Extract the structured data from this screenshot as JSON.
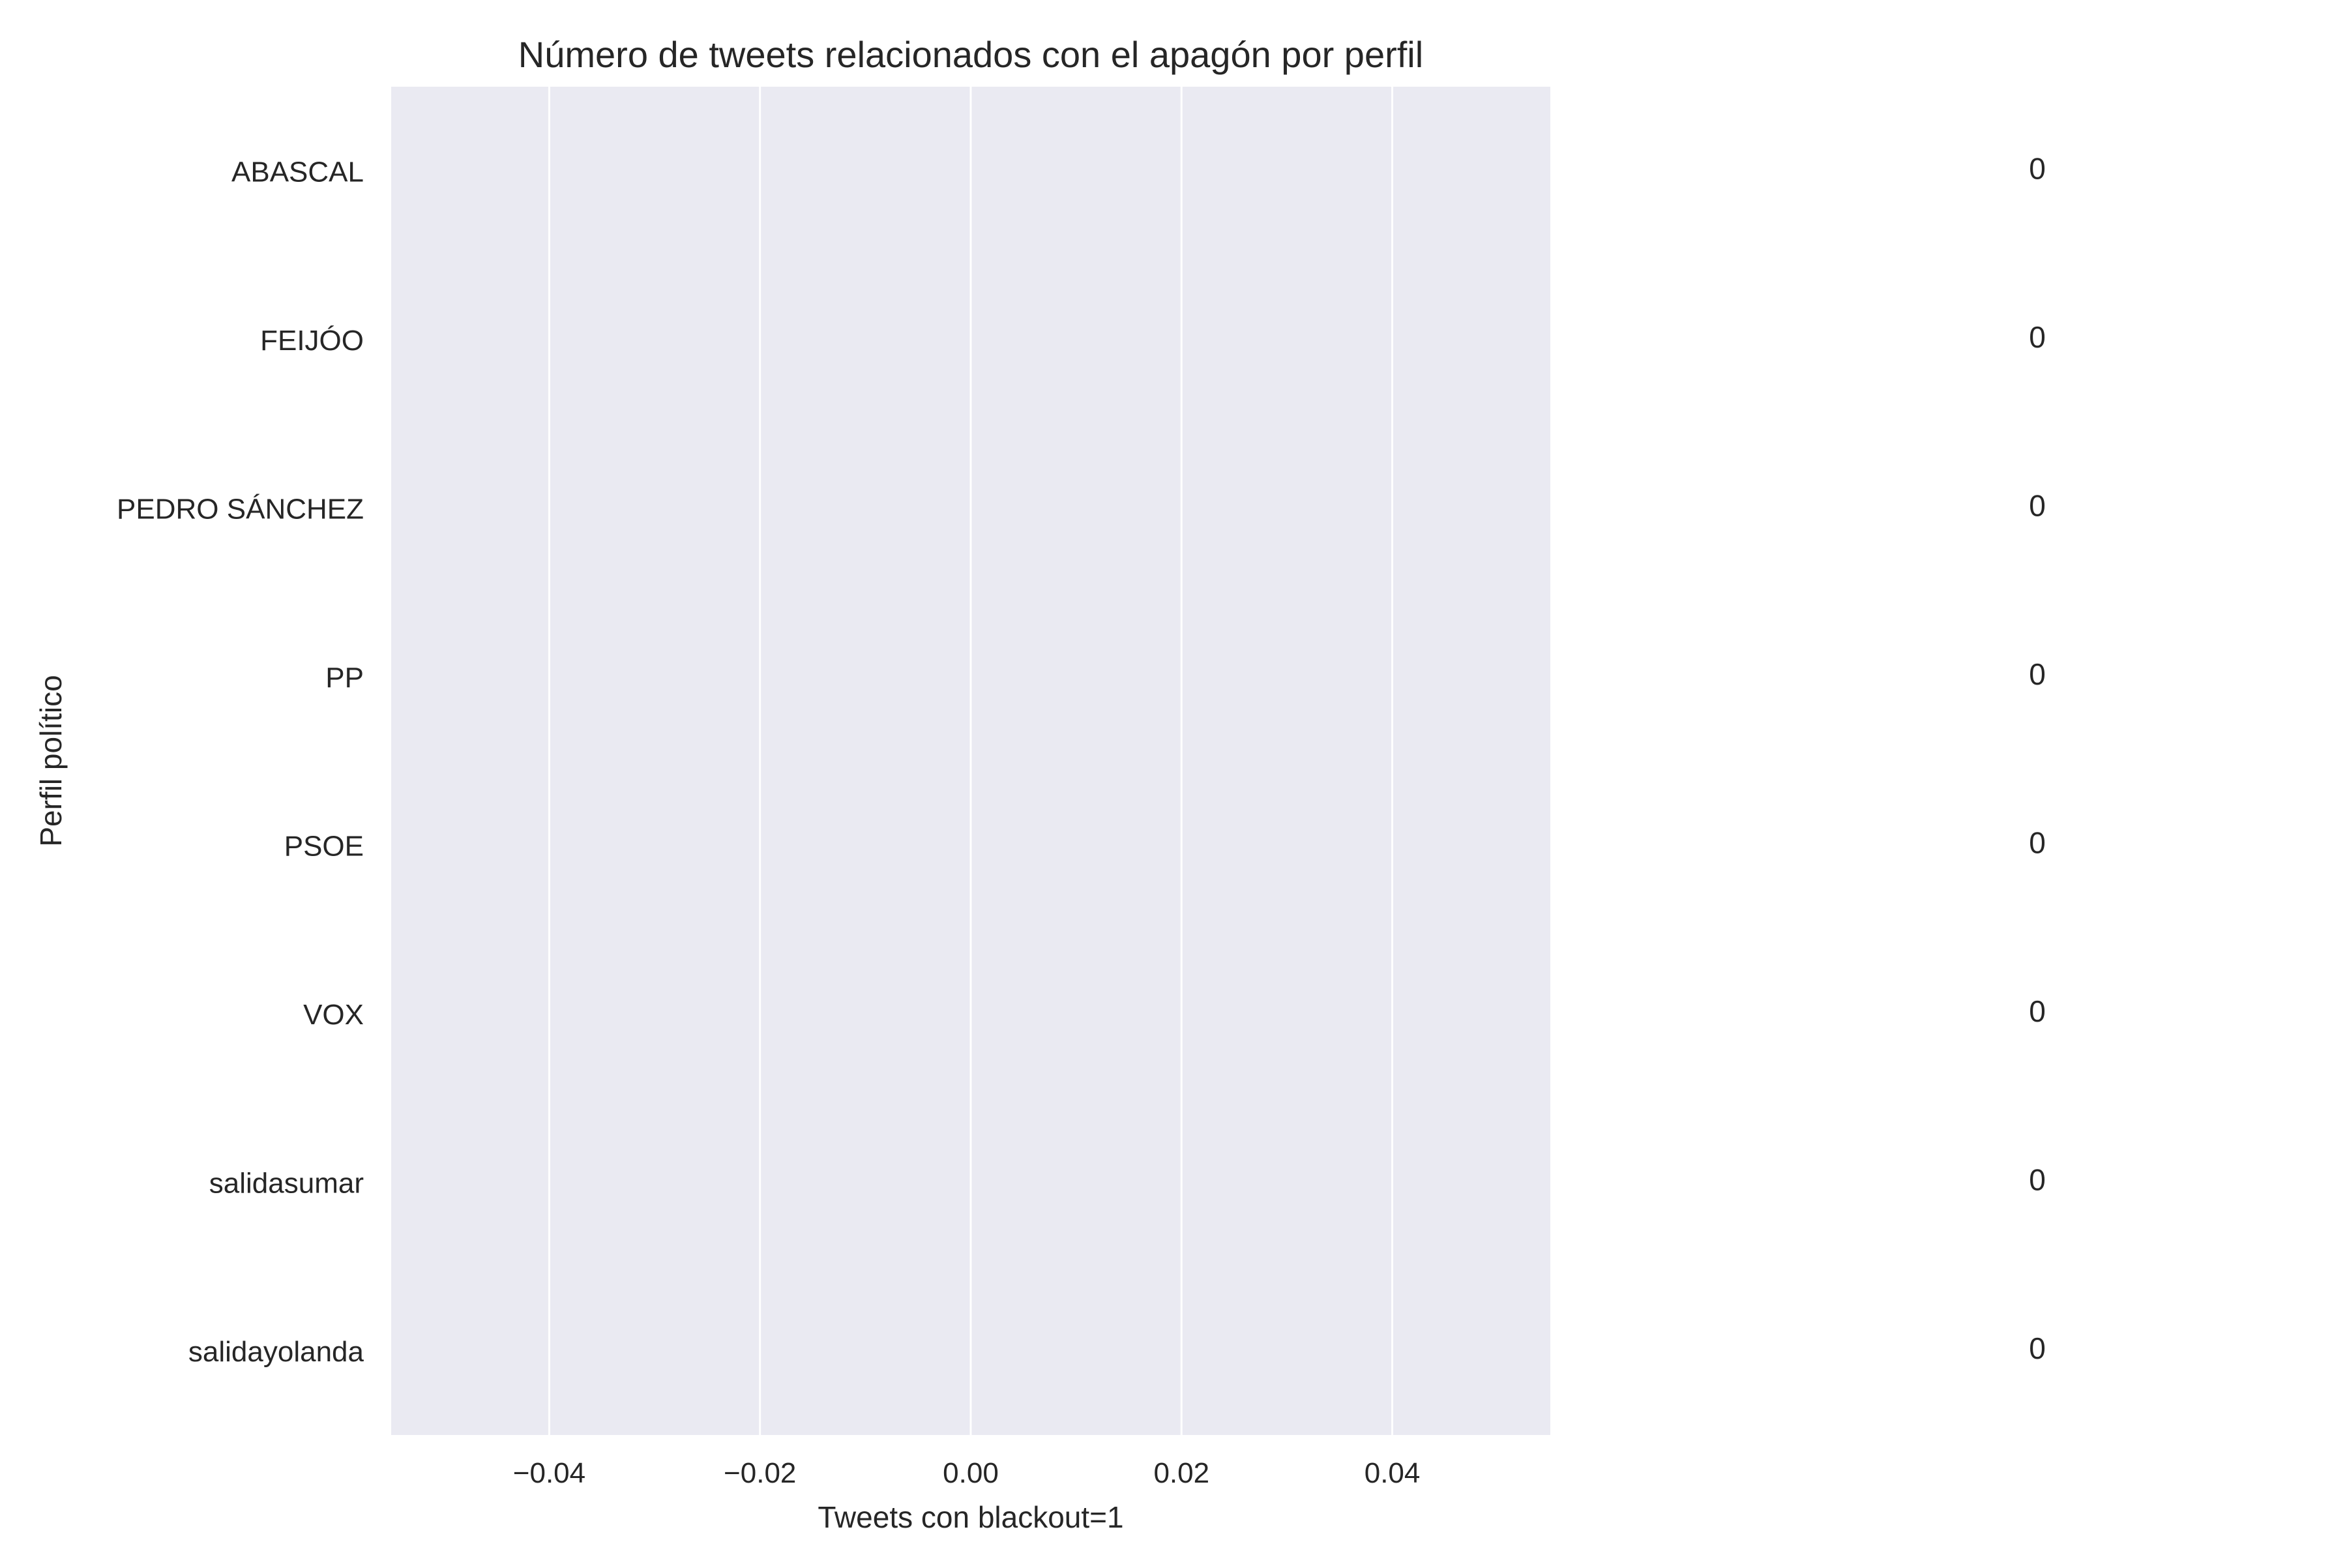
{
  "chart_data": {
    "type": "bar",
    "orientation": "horizontal",
    "title": "Número de tweets relacionados con el apagón por perfil",
    "xlabel": "Tweets con blackout=1",
    "ylabel": "Perfil político",
    "categories": [
      "ABASCAL",
      "FEIJÓO",
      "PEDRO SÁNCHEZ",
      "PP",
      "PSOE",
      "VOX",
      "salidasumar",
      "salidayolanda"
    ],
    "values": [
      0,
      0,
      0,
      0,
      0,
      0,
      0,
      0
    ],
    "data_labels": [
      "0",
      "0",
      "0",
      "0",
      "0",
      "0",
      "0",
      "0"
    ],
    "xlim": [
      -0.055,
      0.055
    ],
    "xticks": [
      -0.04,
      -0.02,
      0.0,
      0.02,
      0.04
    ],
    "xtick_labels": [
      "−0.04",
      "−0.02",
      "0.00",
      "0.02",
      "0.04"
    ],
    "grid": "vertical",
    "colors": {
      "plot_background": "#eaeaf2",
      "grid": "#ffffff",
      "text": "#262626",
      "bar": "#4c72b0"
    }
  }
}
